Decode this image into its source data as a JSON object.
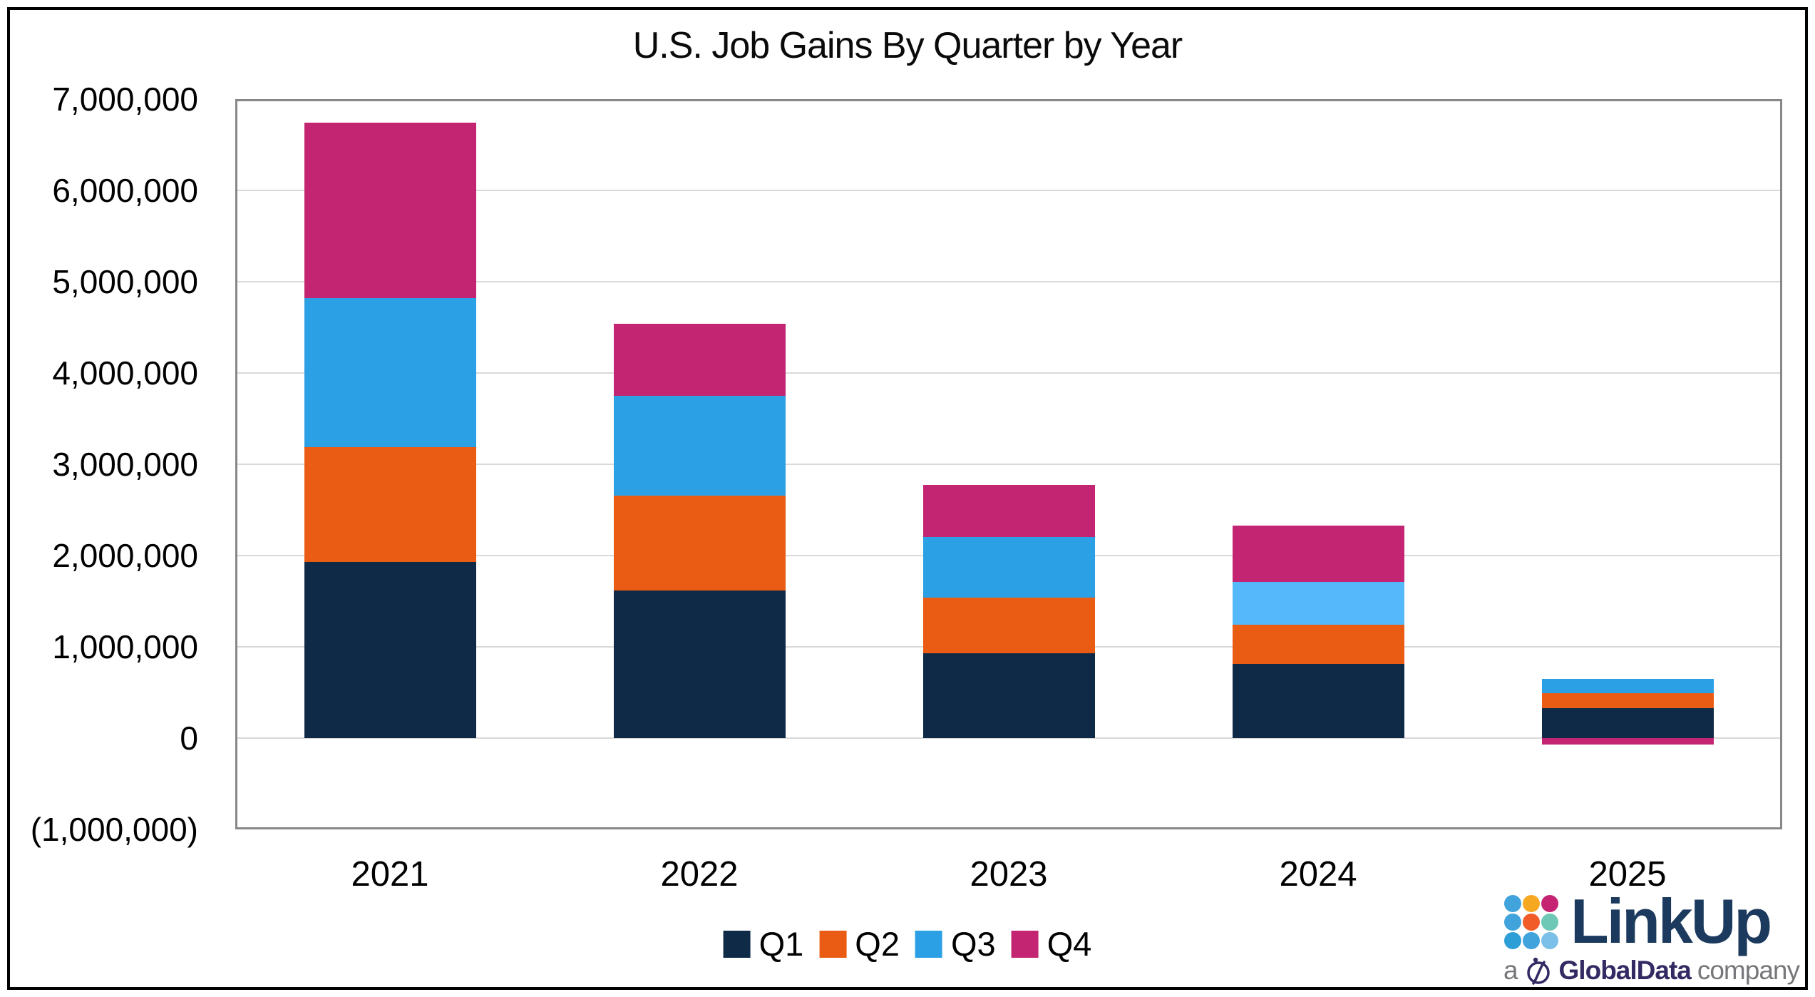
{
  "chart_data": {
    "type": "bar",
    "stacked": true,
    "title": "U.S. Job Gains By Quarter by Year",
    "categories": [
      "2021",
      "2022",
      "2023",
      "2024",
      "2025"
    ],
    "series": [
      {
        "name": "Q1",
        "color": "#0E2A47",
        "values": [
          1930000,
          1620000,
          930000,
          810000,
          330000
        ]
      },
      {
        "name": "Q2",
        "color": "#EA5B13",
        "values": [
          1260000,
          1040000,
          610000,
          430000,
          160000
        ]
      },
      {
        "name": "Q3",
        "color": "#2CA0E5",
        "values": [
          1630000,
          1090000,
          660000,
          470000,
          160000
        ]
      },
      {
        "name": "Q4",
        "color": "#C32572",
        "values": [
          1920000,
          790000,
          570000,
          620000,
          -70000
        ]
      }
    ],
    "color_overrides": [
      {
        "category": "2024",
        "series": "Q3",
        "color": "#55B8FA"
      }
    ],
    "totals": [
      6740000,
      4540000,
      2770000,
      2330000,
      580000
    ],
    "ylim": [
      -1000000,
      7000000
    ],
    "yticks": [
      {
        "value": 7000000,
        "label": "7,000,000"
      },
      {
        "value": 6000000,
        "label": "6,000,000"
      },
      {
        "value": 5000000,
        "label": "5,000,000"
      },
      {
        "value": 4000000,
        "label": "4,000,000"
      },
      {
        "value": 3000000,
        "label": "3,000,000"
      },
      {
        "value": 2000000,
        "label": "2,000,000"
      },
      {
        "value": 1000000,
        "label": "1,000,000"
      },
      {
        "value": 0,
        "label": "0"
      },
      {
        "value": -1000000,
        "label": "(1,000,000)"
      }
    ],
    "xlabel": "",
    "ylabel": "",
    "grid": true,
    "legend_position": "bottom",
    "axis_color": "#878787",
    "gridline_color": "#D9D9D9"
  },
  "logo": {
    "brand": "LinkUp",
    "sub_prefix": "a",
    "sub_company": "GlobalData",
    "sub_suffix": "company",
    "brand_color": "#1C3A5E",
    "company_color": "#332A63",
    "sub_text_color": "#77777B",
    "dot_colors": [
      "#41A3DC",
      "#F7A823",
      "#C42472",
      "#41A3DC",
      "#F15B28",
      "#6FC8B5",
      "#2E9FD6",
      "#41A3DC",
      "#7AC0E8"
    ]
  }
}
